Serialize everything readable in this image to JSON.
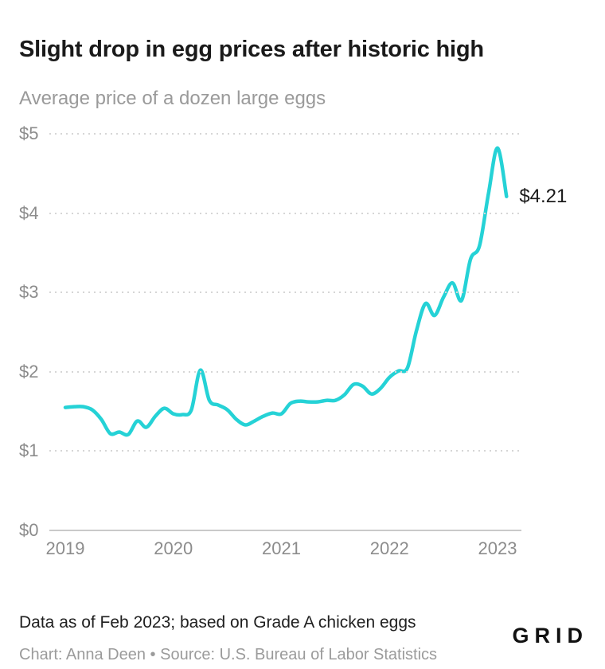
{
  "header": {
    "title": "Slight drop in egg prices after historic high",
    "subtitle": "Average price of a dozen large eggs"
  },
  "chart_data": {
    "type": "line",
    "title": "Slight drop in egg prices after historic high",
    "subtitle": "Average price of a dozen large eggs",
    "unit": "US dollars per dozen large eggs",
    "x_interval": "monthly",
    "x_start": "2019-01",
    "x_end": "2023-02",
    "x_tick_labels": [
      "2019",
      "2020",
      "2021",
      "2022",
      "2023"
    ],
    "y_tick_labels": [
      "$0",
      "$1",
      "$2",
      "$3",
      "$4",
      "$5"
    ],
    "ylim": [
      0,
      5
    ],
    "grid": "horizontal-dotted",
    "legend": "none",
    "line_color": "#25d2d6",
    "annotation": {
      "text": "$4.21",
      "x": "2023-02",
      "y": 4.21
    },
    "series": [
      {
        "name": "Average price of a dozen large eggs",
        "values": [
          1.55,
          1.56,
          1.56,
          1.52,
          1.4,
          1.22,
          1.24,
          1.21,
          1.38,
          1.3,
          1.44,
          1.54,
          1.47,
          1.46,
          1.52,
          2.02,
          1.64,
          1.58,
          1.52,
          1.4,
          1.33,
          1.38,
          1.44,
          1.48,
          1.47,
          1.6,
          1.63,
          1.62,
          1.62,
          1.64,
          1.64,
          1.71,
          1.84,
          1.82,
          1.72,
          1.79,
          1.93,
          2.01,
          2.05,
          2.52,
          2.86,
          2.71,
          2.94,
          3.12,
          2.9,
          3.42,
          3.59,
          4.25,
          4.82,
          4.21
        ]
      }
    ]
  },
  "footer": {
    "note": "Data as of Feb 2023; based on Grade A chicken eggs",
    "credit": "Chart: Anna Deen • Source: U.S. Bureau of Labor Statistics",
    "logo": "GRID"
  }
}
